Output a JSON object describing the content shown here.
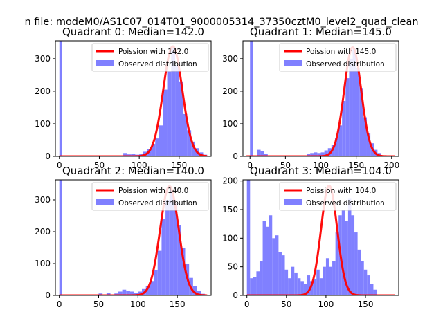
{
  "figure": {
    "suptitle": "n file: modeM0/AS1C07_014T01_9000005314_37350cztM0_level2_quad_clean"
  },
  "colors": {
    "hist": "#8080ff",
    "fit": "#ff0000",
    "axes": "#000000"
  },
  "chart_data": [
    {
      "type": "bar",
      "title": "Quadrant 0: Median=142.0",
      "xticks": [
        "0",
        "50",
        "100",
        "150"
      ],
      "yticks": [
        "0",
        "100",
        "200",
        "300"
      ],
      "xlim": [
        -5,
        190
      ],
      "ylim": [
        0,
        355
      ],
      "legend": {
        "position": "top-right",
        "fit_label": "Poission with 142.0",
        "hist_label": "Observed distribution"
      },
      "fit_mean": 142,
      "fit_peak": 338,
      "bins": [
        [
          0,
          3,
          360
        ],
        [
          80,
          85,
          10
        ],
        [
          85,
          90,
          6
        ],
        [
          90,
          95,
          8
        ],
        [
          95,
          100,
          5
        ],
        [
          100,
          105,
          8
        ],
        [
          105,
          110,
          14
        ],
        [
          110,
          115,
          22
        ],
        [
          115,
          120,
          38
        ],
        [
          120,
          125,
          55
        ],
        [
          125,
          130,
          95
        ],
        [
          130,
          135,
          205
        ],
        [
          135,
          140,
          260
        ],
        [
          140,
          145,
          335
        ],
        [
          145,
          150,
          280
        ],
        [
          150,
          155,
          230
        ],
        [
          155,
          160,
          130
        ],
        [
          160,
          165,
          80
        ],
        [
          165,
          170,
          45
        ],
        [
          170,
          175,
          25
        ],
        [
          175,
          180,
          12
        ],
        [
          180,
          185,
          5
        ]
      ]
    },
    {
      "type": "bar",
      "title": "Quadrant 1: Median=145.0",
      "xticks": [
        "0",
        "50",
        "100",
        "150",
        "200"
      ],
      "yticks": [
        "0",
        "100",
        "200",
        "300"
      ],
      "xlim": [
        -10,
        210
      ],
      "ylim": [
        0,
        355
      ],
      "legend": {
        "position": "top-right",
        "fit_label": "Poission with 145.0",
        "hist_label": "Observed distribution"
      },
      "fit_mean": 145,
      "fit_peak": 335,
      "bins": [
        [
          0,
          4,
          360
        ],
        [
          10,
          15,
          20
        ],
        [
          15,
          20,
          15
        ],
        [
          20,
          25,
          8
        ],
        [
          80,
          85,
          8
        ],
        [
          85,
          90,
          10
        ],
        [
          90,
          95,
          12
        ],
        [
          95,
          100,
          10
        ],
        [
          100,
          105,
          12
        ],
        [
          105,
          110,
          18
        ],
        [
          110,
          115,
          25
        ],
        [
          115,
          120,
          35
        ],
        [
          120,
          125,
          55
        ],
        [
          125,
          130,
          95
        ],
        [
          130,
          135,
          170
        ],
        [
          135,
          140,
          240
        ],
        [
          140,
          145,
          300
        ],
        [
          145,
          150,
          330
        ],
        [
          150,
          155,
          270
        ],
        [
          155,
          160,
          210
        ],
        [
          160,
          165,
          120
        ],
        [
          165,
          170,
          70
        ],
        [
          170,
          175,
          40
        ],
        [
          175,
          180,
          20
        ],
        [
          180,
          185,
          10
        ]
      ]
    },
    {
      "type": "bar",
      "title": "Quadrant 2: Median=140.0",
      "xticks": [
        "0",
        "50",
        "100",
        "150"
      ],
      "yticks": [
        "0",
        "100",
        "200",
        "300"
      ],
      "xlim": [
        -5,
        193
      ],
      "ylim": [
        0,
        363
      ],
      "legend": {
        "position": "top-right",
        "fit_label": "Poission with 140.0",
        "hist_label": "Observed distribution"
      },
      "fit_mean": 140,
      "fit_peak": 343,
      "bins": [
        [
          0,
          3,
          363
        ],
        [
          50,
          55,
          6
        ],
        [
          60,
          65,
          8
        ],
        [
          70,
          75,
          6
        ],
        [
          75,
          80,
          12
        ],
        [
          80,
          85,
          18
        ],
        [
          85,
          90,
          14
        ],
        [
          90,
          95,
          12
        ],
        [
          95,
          100,
          8
        ],
        [
          100,
          105,
          12
        ],
        [
          105,
          110,
          20
        ],
        [
          110,
          115,
          30
        ],
        [
          115,
          120,
          45
        ],
        [
          120,
          125,
          80
        ],
        [
          125,
          130,
          140
        ],
        [
          130,
          135,
          240
        ],
        [
          135,
          140,
          300
        ],
        [
          140,
          145,
          330
        ],
        [
          145,
          150,
          290
        ],
        [
          150,
          155,
          220
        ],
        [
          155,
          160,
          150
        ],
        [
          160,
          165,
          100
        ],
        [
          165,
          170,
          55
        ],
        [
          170,
          175,
          30
        ],
        [
          175,
          180,
          15
        ],
        [
          180,
          185,
          5
        ]
      ]
    },
    {
      "type": "bar",
      "title": "Quadrant 3: Median=104.0",
      "xticks": [
        "0",
        "50",
        "100",
        "150"
      ],
      "yticks": [
        "0",
        "50",
        "100",
        "150",
        "200"
      ],
      "xlim": [
        -5,
        192
      ],
      "ylim": [
        0,
        202
      ],
      "legend": {
        "position": "top-right",
        "fit_label": "Poission with 104.0",
        "hist_label": "Observed distribution"
      },
      "fit_mean": 104,
      "fit_peak": 192,
      "bins": [
        [
          0,
          4,
          210
        ],
        [
          4,
          8,
          30
        ],
        [
          8,
          12,
          32
        ],
        [
          12,
          16,
          42
        ],
        [
          16,
          20,
          60
        ],
        [
          20,
          24,
          130
        ],
        [
          24,
          28,
          120
        ],
        [
          28,
          32,
          140
        ],
        [
          32,
          36,
          100
        ],
        [
          36,
          40,
          105
        ],
        [
          40,
          44,
          75
        ],
        [
          44,
          48,
          70
        ],
        [
          48,
          52,
          45
        ],
        [
          52,
          56,
          30
        ],
        [
          56,
          60,
          50
        ],
        [
          60,
          64,
          40
        ],
        [
          64,
          68,
          30
        ],
        [
          68,
          72,
          25
        ],
        [
          72,
          76,
          20
        ],
        [
          76,
          80,
          35
        ],
        [
          80,
          84,
          25
        ],
        [
          84,
          88,
          28
        ],
        [
          88,
          92,
          45
        ],
        [
          92,
          96,
          30
        ],
        [
          96,
          100,
          50
        ],
        [
          100,
          104,
          65
        ],
        [
          104,
          108,
          50
        ],
        [
          108,
          112,
          60
        ],
        [
          112,
          116,
          110
        ],
        [
          116,
          120,
          140
        ],
        [
          120,
          124,
          150
        ],
        [
          124,
          128,
          130
        ],
        [
          128,
          132,
          170
        ],
        [
          132,
          136,
          140
        ],
        [
          136,
          140,
          110
        ],
        [
          140,
          144,
          80
        ],
        [
          144,
          148,
          60
        ],
        [
          148,
          152,
          45
        ],
        [
          152,
          156,
          35
        ],
        [
          156,
          160,
          20
        ],
        [
          160,
          164,
          10
        ]
      ]
    }
  ]
}
